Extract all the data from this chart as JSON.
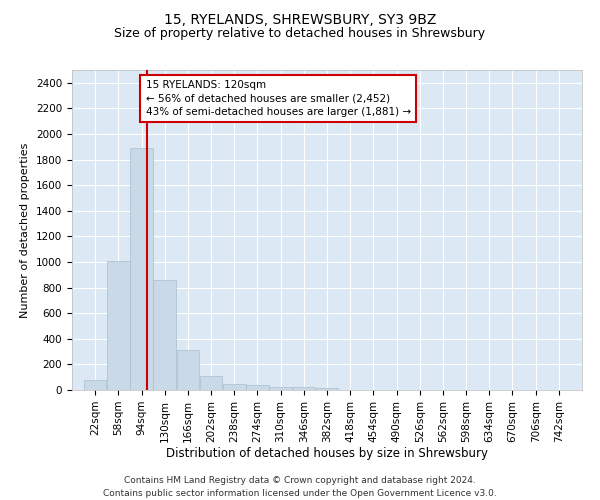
{
  "title": "15, RYELANDS, SHREWSBURY, SY3 9BZ",
  "subtitle": "Size of property relative to detached houses in Shrewsbury",
  "xlabel": "Distribution of detached houses by size in Shrewsbury",
  "ylabel": "Number of detached properties",
  "bar_color": "#c9d9e8",
  "bar_edgecolor": "#a8bfd0",
  "grid_color": "#ffffff",
  "bg_color": "#dce8f4",
  "annotation_line_color": "#cc0000",
  "annotation_box_edgecolor": "#cc0000",
  "annotation_text": "15 RYELANDS: 120sqm\n← 56% of detached houses are smaller (2,452)\n43% of semi-detached houses are larger (1,881) →",
  "property_size_sqm": 120,
  "bin_edges": [
    22,
    58,
    94,
    130,
    166,
    202,
    238,
    274,
    310,
    346,
    382,
    418,
    454,
    490,
    526,
    562,
    598,
    634,
    670,
    706,
    742
  ],
  "bin_labels": [
    "22sqm",
    "58sqm",
    "94sqm",
    "130sqm",
    "166sqm",
    "202sqm",
    "238sqm",
    "274sqm",
    "310sqm",
    "346sqm",
    "382sqm",
    "418sqm",
    "454sqm",
    "490sqm",
    "526sqm",
    "562sqm",
    "598sqm",
    "634sqm",
    "670sqm",
    "706sqm",
    "742sqm"
  ],
  "bar_heights": [
    80,
    1010,
    1890,
    860,
    310,
    110,
    50,
    40,
    25,
    20,
    15,
    0,
    0,
    0,
    0,
    0,
    0,
    0,
    0,
    0
  ],
  "ylim": [
    0,
    2500
  ],
  "yticks": [
    0,
    200,
    400,
    600,
    800,
    1000,
    1200,
    1400,
    1600,
    1800,
    2000,
    2200,
    2400
  ],
  "footer": "Contains HM Land Registry data © Crown copyright and database right 2024.\nContains public sector information licensed under the Open Government Licence v3.0.",
  "title_fontsize": 10,
  "subtitle_fontsize": 9,
  "xlabel_fontsize": 8.5,
  "ylabel_fontsize": 8,
  "tick_fontsize": 7.5,
  "footer_fontsize": 6.5,
  "annot_fontsize": 7.5
}
